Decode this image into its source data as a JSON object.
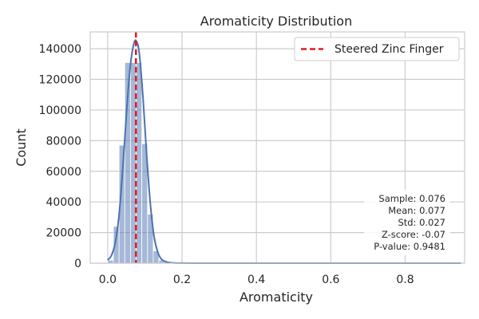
{
  "chart_data": {
    "type": "bar",
    "title": "Aromaticity Distribution",
    "xlabel": "Aromaticity",
    "ylabel": "Count",
    "xlim": [
      -0.047,
      0.96
    ],
    "ylim": [
      0,
      151000
    ],
    "xticks": [
      0.0,
      0.2,
      0.4,
      0.6,
      0.8
    ],
    "xtick_labels": [
      "0.0",
      "0.2",
      "0.4",
      "0.6",
      "0.8"
    ],
    "yticks": [
      0,
      20000,
      40000,
      60000,
      80000,
      100000,
      120000,
      140000
    ],
    "ytick_labels": [
      "0",
      "20000",
      "40000",
      "60000",
      "80000",
      "100000",
      "120000",
      "140000"
    ],
    "grid": true,
    "bin_width": 0.0153,
    "bins": [
      {
        "x": 0.0077,
        "value": 2000
      },
      {
        "x": 0.023,
        "value": 24000
      },
      {
        "x": 0.0383,
        "value": 77000
      },
      {
        "x": 0.0536,
        "value": 131000
      },
      {
        "x": 0.0689,
        "value": 131000
      },
      {
        "x": 0.0842,
        "value": 131000
      },
      {
        "x": 0.0995,
        "value": 78000
      },
      {
        "x": 0.1148,
        "value": 32000
      },
      {
        "x": 0.1301,
        "value": 8000
      },
      {
        "x": 0.1454,
        "value": 2000
      },
      {
        "x": 0.1607,
        "value": 800
      },
      {
        "x": 0.176,
        "value": 300
      }
    ],
    "kde": {
      "x": [
        0.0,
        0.01,
        0.02,
        0.03,
        0.04,
        0.05,
        0.06,
        0.07,
        0.077,
        0.085,
        0.095,
        0.105,
        0.115,
        0.125,
        0.135,
        0.145,
        0.16,
        0.18,
        0.2,
        0.25,
        0.3,
        0.35,
        0.95
      ],
      "y": [
        2000,
        5000,
        13000,
        30000,
        60000,
        96000,
        127000,
        143000,
        145000,
        137000,
        108000,
        70000,
        38000,
        17000,
        7000,
        2500,
        700,
        150,
        40,
        5,
        0,
        0,
        0
      ]
    },
    "reference_line": {
      "label": "Steered Zinc Finger",
      "x": 0.076,
      "color": "#e41a1c"
    },
    "series_color": "#4c72b0",
    "legend_position": "top-right",
    "stats": {
      "sample": "Sample: 0.076",
      "mean": "Mean: 0.077",
      "std": "Std: 0.027",
      "zscore": "Z-score: -0.07",
      "pvalue": "P-value: 0.9481"
    }
  }
}
